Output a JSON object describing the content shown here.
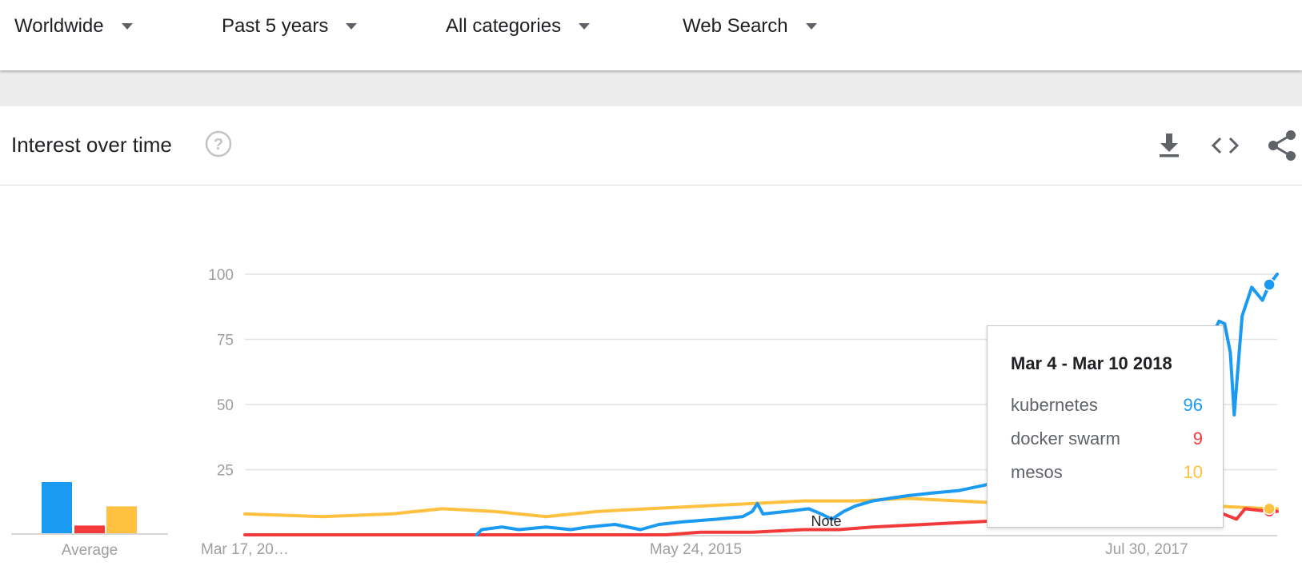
{
  "filters": [
    {
      "label": "Worldwide"
    },
    {
      "label": "Past 5 years"
    },
    {
      "label": "All categories"
    },
    {
      "label": "Web Search"
    }
  ],
  "card": {
    "title": "Interest over time",
    "icons": [
      "help-circle-icon",
      "download-icon",
      "embed-code-icon",
      "share-icon"
    ]
  },
  "colors": {
    "kubernetes": "#1a9af0",
    "docker_swarm": "#f23a3a",
    "mesos": "#ffc13f",
    "grid": "#e3e3e3",
    "axis_text": "#9e9e9e"
  },
  "average": {
    "label": "Average",
    "values": [
      {
        "series": "kubernetes",
        "value": 20
      },
      {
        "series": "docker swarm",
        "value": 3
      },
      {
        "series": "mesos",
        "value": 10.5
      }
    ]
  },
  "tooltip": {
    "date": "Mar 4 - Mar 10 2018",
    "rows": [
      {
        "name": "kubernetes",
        "value": "96"
      },
      {
        "name": "docker swarm",
        "value": "9"
      },
      {
        "name": "mesos",
        "value": "10"
      }
    ]
  },
  "chart_data": {
    "type": "line",
    "y_ticks": [
      25,
      50,
      75,
      100
    ],
    "ylim": [
      0,
      100
    ],
    "x_tick_labels": [
      {
        "label": "Mar 17, 20…",
        "date": "2013-03-17"
      },
      {
        "label": "May 24, 2015",
        "date": "2015-05-24"
      },
      {
        "label": "Jul 30, 2017",
        "date": "2017-07-30"
      }
    ],
    "x_range": [
      "2013-03-17",
      "2018-03-18"
    ],
    "annotation": {
      "label": "Note",
      "date": "2016-01-10"
    },
    "hover_date": "2018-03-04",
    "series": [
      {
        "name": "kubernetes",
        "key": "kubernetes",
        "points": [
          [
            "2014-05-01",
            0
          ],
          [
            "2014-05-10",
            2
          ],
          [
            "2014-06-15",
            3
          ],
          [
            "2014-07-15",
            2
          ],
          [
            "2014-09-01",
            3
          ],
          [
            "2014-10-15",
            2
          ],
          [
            "2014-11-15",
            3
          ],
          [
            "2015-01-01",
            4
          ],
          [
            "2015-02-15",
            2
          ],
          [
            "2015-03-20",
            4
          ],
          [
            "2015-05-01",
            5
          ],
          [
            "2015-07-01",
            6
          ],
          [
            "2015-08-15",
            7
          ],
          [
            "2015-09-01",
            9
          ],
          [
            "2015-09-10",
            12
          ],
          [
            "2015-09-20",
            8
          ],
          [
            "2015-11-01",
            9
          ],
          [
            "2015-12-10",
            10
          ],
          [
            "2016-01-01",
            8
          ],
          [
            "2016-01-20",
            6
          ],
          [
            "2016-02-10",
            9
          ],
          [
            "2016-03-01",
            11
          ],
          [
            "2016-04-01",
            13
          ],
          [
            "2016-05-01",
            14
          ],
          [
            "2016-06-01",
            15
          ],
          [
            "2016-07-15",
            16
          ],
          [
            "2016-09-01",
            17
          ],
          [
            "2016-10-15",
            19
          ],
          [
            "2016-11-01",
            20
          ],
          [
            "2016-12-01",
            22
          ],
          [
            "2017-01-01",
            24
          ],
          [
            "2017-02-01",
            28
          ],
          [
            "2017-03-01",
            30
          ],
          [
            "2017-04-01",
            33
          ],
          [
            "2017-05-10",
            40
          ],
          [
            "2017-06-01",
            43
          ],
          [
            "2017-07-01",
            44
          ],
          [
            "2017-08-01",
            48
          ],
          [
            "2017-09-01",
            54
          ],
          [
            "2017-10-01",
            60
          ],
          [
            "2017-11-01",
            66
          ],
          [
            "2017-11-20",
            75
          ],
          [
            "2017-12-05",
            82
          ],
          [
            "2017-12-15",
            81
          ],
          [
            "2017-12-25",
            70
          ],
          [
            "2018-01-01",
            46
          ],
          [
            "2018-01-15",
            84
          ],
          [
            "2018-02-01",
            95
          ],
          [
            "2018-02-20",
            90
          ],
          [
            "2018-03-04",
            96
          ],
          [
            "2018-03-18",
            100
          ]
        ]
      },
      {
        "name": "docker swarm",
        "key": "docker_swarm",
        "points": [
          [
            "2013-03-17",
            0
          ],
          [
            "2015-04-01",
            0
          ],
          [
            "2015-06-01",
            1
          ],
          [
            "2015-09-01",
            1
          ],
          [
            "2015-12-01",
            2
          ],
          [
            "2016-02-01",
            2
          ],
          [
            "2016-04-01",
            3
          ],
          [
            "2016-07-01",
            4
          ],
          [
            "2016-10-01",
            5
          ],
          [
            "2017-01-01",
            6
          ],
          [
            "2017-03-01",
            7
          ],
          [
            "2017-06-01",
            8
          ],
          [
            "2017-09-01",
            8
          ],
          [
            "2017-12-01",
            9
          ],
          [
            "2018-01-05",
            6
          ],
          [
            "2018-01-20",
            10
          ],
          [
            "2018-03-04",
            9
          ],
          [
            "2018-03-18",
            9
          ]
        ]
      },
      {
        "name": "mesos",
        "key": "mesos",
        "points": [
          [
            "2013-03-17",
            8
          ],
          [
            "2013-08-01",
            7
          ],
          [
            "2013-12-01",
            8
          ],
          [
            "2014-03-01",
            10
          ],
          [
            "2014-06-01",
            9
          ],
          [
            "2014-09-01",
            7
          ],
          [
            "2014-12-01",
            9
          ],
          [
            "2015-03-01",
            10
          ],
          [
            "2015-06-01",
            11
          ],
          [
            "2015-09-01",
            12
          ],
          [
            "2015-12-01",
            13
          ],
          [
            "2016-03-01",
            13
          ],
          [
            "2016-06-01",
            14
          ],
          [
            "2016-09-01",
            13
          ],
          [
            "2016-12-01",
            12
          ],
          [
            "2017-03-01",
            12
          ],
          [
            "2017-06-01",
            12
          ],
          [
            "2017-09-01",
            12
          ],
          [
            "2017-12-01",
            11
          ],
          [
            "2018-03-04",
            10
          ],
          [
            "2018-03-18",
            10
          ]
        ]
      }
    ]
  }
}
